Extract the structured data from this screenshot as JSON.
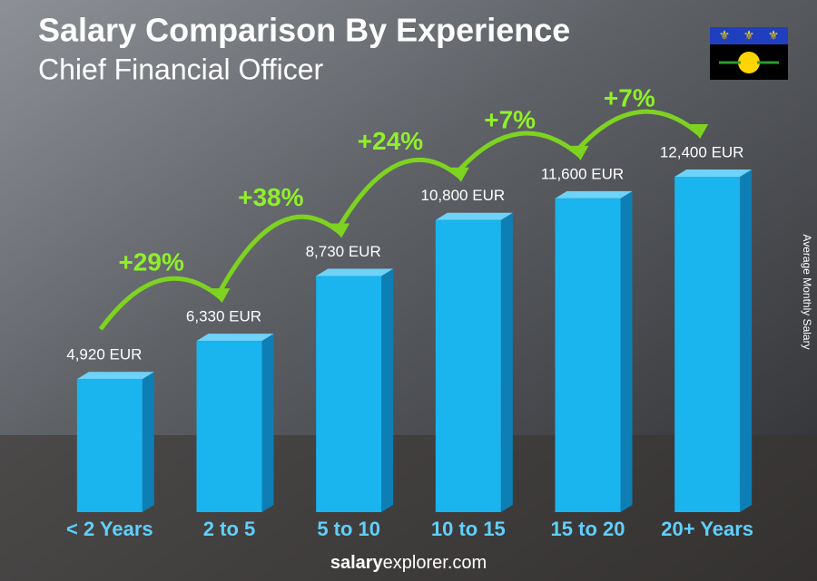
{
  "chart_data": {
    "type": "bar",
    "title": "Salary Comparison By Experience",
    "subtitle": "Chief Financial Officer",
    "y_axis_label": "Average Monthly Salary",
    "categories": [
      "< 2 Years",
      "2 to 5",
      "5 to 10",
      "10 to 15",
      "15 to 20",
      "20+ Years"
    ],
    "values": [
      4920,
      6330,
      8730,
      10800,
      11600,
      12400
    ],
    "value_labels": [
      "4,920 EUR",
      "6,330 EUR",
      "8,730 EUR",
      "10,800 EUR",
      "11,600 EUR",
      "12,400 EUR"
    ],
    "changes": [
      "+29%",
      "+38%",
      "+24%",
      "+7%",
      "+7%"
    ],
    "color": "#1ab4ee",
    "footer": [
      "salary",
      "explorer.com"
    ]
  }
}
